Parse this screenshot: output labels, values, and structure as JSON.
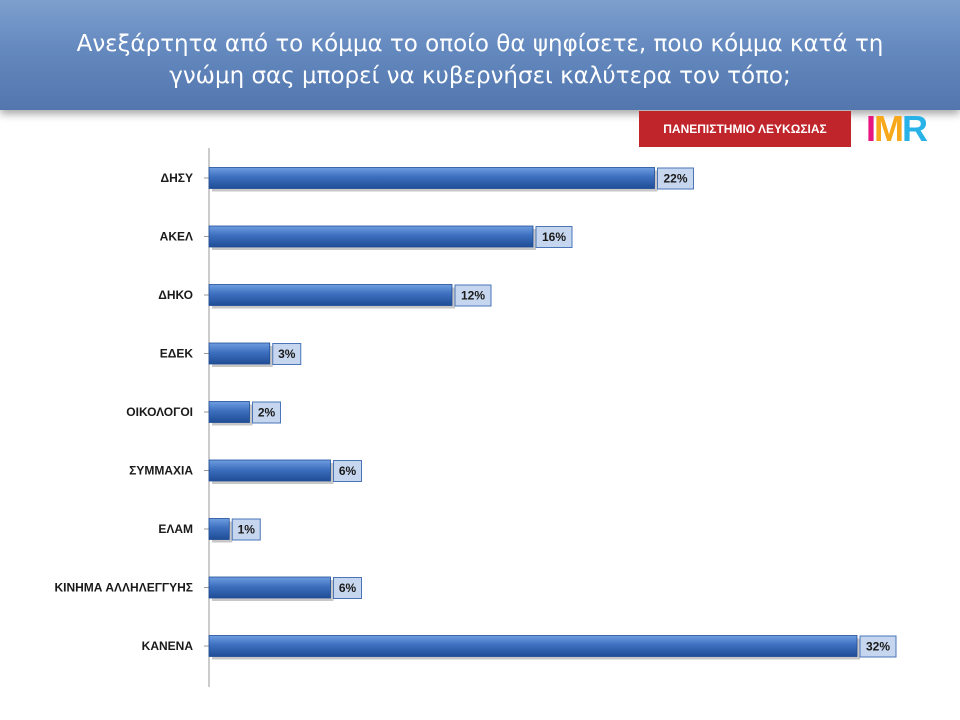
{
  "header": {
    "title": "Ανεξάρτητα από το κόμμα το οποίο θα ψηφίσετε, ποιο κόμμα κατά τη γνώμη σας μπορεί να κυβερνήσει καλύτερα τον τόπο;"
  },
  "badge": {
    "label": "ΠΑΝΕΠΙΣΤΗΜΙΟ ΛΕΥΚΩΣΙΑΣ"
  },
  "logo": {
    "i": "I",
    "m": "M",
    "r": "R"
  },
  "colors": {
    "bar": "#3d6fbf",
    "bar_dark": "#1f4d96",
    "label_box": "#c6d6ee",
    "label_border": "#4a75b8",
    "badge": "#c0252b"
  },
  "chart_data": {
    "type": "bar",
    "orientation": "horizontal",
    "categories": [
      "ΔΗΣΥ",
      "ΑΚΕΛ",
      "ΔΗΚΟ",
      "ΕΔΕΚ",
      "ΟΙΚΟΛΟΓΟΙ",
      "ΣΥΜΜΑΧΙΑ",
      "ΕΛΑΜ",
      "ΚΙΝΗΜΑ ΑΛΛΗΛΕΓΓΥΗΣ",
      "ΚΑΝΕΝΑ"
    ],
    "values": [
      22,
      16,
      12,
      3,
      2,
      6,
      1,
      6,
      32
    ],
    "value_labels": [
      "22%",
      "16%",
      "12%",
      "3%",
      "2%",
      "6%",
      "1%",
      "6%",
      "32%"
    ],
    "title": "Ανεξάρτητα από το κόμμα το οποίο θα ψηφίσετε, ποιο κόμμα κατά τη γνώμη σας μπορεί να κυβερνήσει καλύτερα τον τόπο;",
    "xlabel": "",
    "ylabel": "",
    "xlim": [
      0,
      32
    ],
    "grid": false,
    "legend": "none"
  }
}
